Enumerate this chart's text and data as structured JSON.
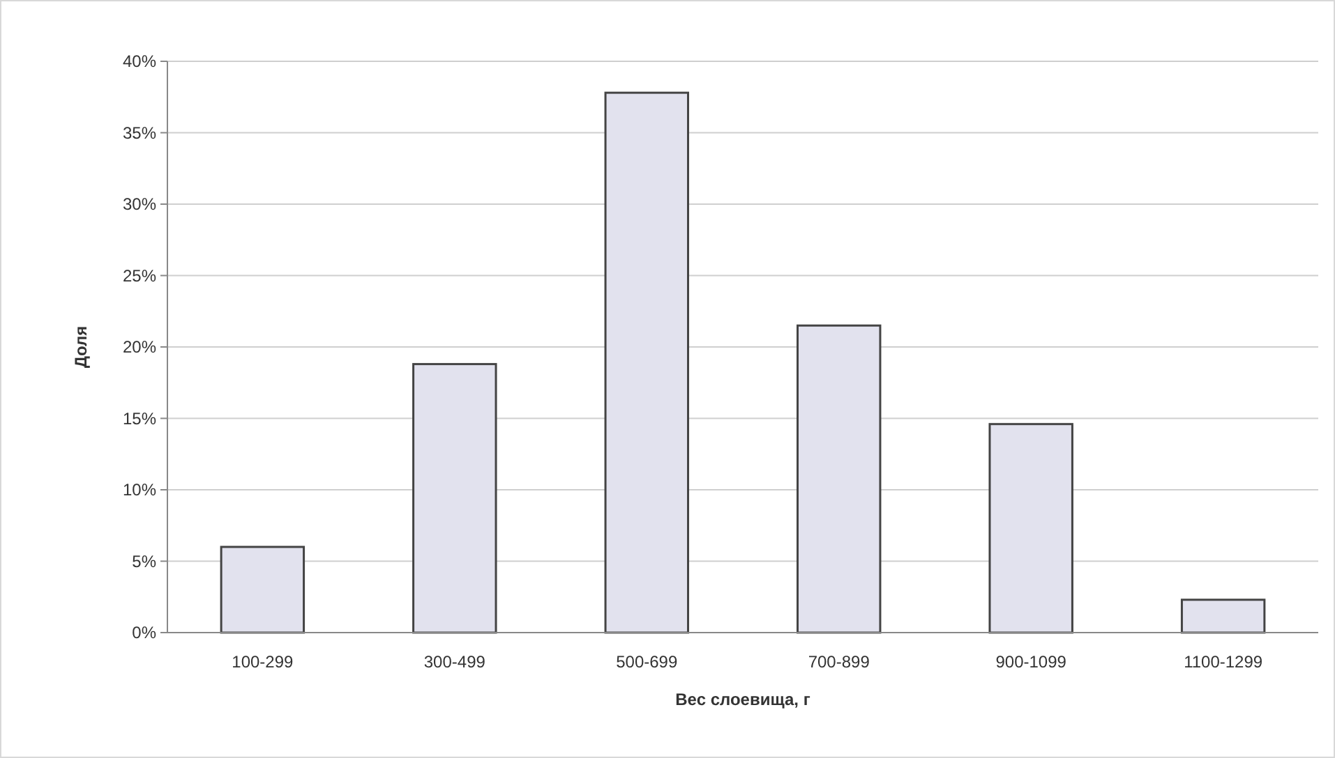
{
  "chart_data": {
    "type": "bar",
    "xlabel": "Вес слоевища, г",
    "ylabel": "Доля",
    "categories": [
      "100-299",
      "300-499",
      "500-699",
      "700-899",
      "900-1099",
      "1100-1299"
    ],
    "values": [
      6.0,
      18.8,
      37.8,
      21.5,
      14.6,
      2.3
    ],
    "color": "#e2e2ee",
    "ylim": [
      0,
      40
    ],
    "yticks": [
      {
        "value": 0,
        "label": "0%"
      },
      {
        "value": 5,
        "label": "5%"
      },
      {
        "value": 10,
        "label": "10%"
      },
      {
        "value": 15,
        "label": "15%"
      },
      {
        "value": 20,
        "label": "20%"
      },
      {
        "value": 25,
        "label": "25%"
      },
      {
        "value": 30,
        "label": "30%"
      },
      {
        "value": 35,
        "label": "35%"
      },
      {
        "value": 40,
        "label": "40%"
      }
    ],
    "grid": "y"
  }
}
